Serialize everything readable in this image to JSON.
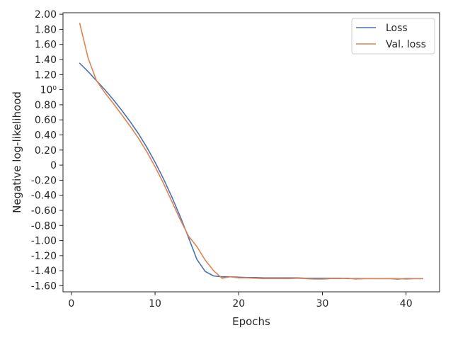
{
  "chart_data": {
    "type": "line",
    "xlabel": "Epochs",
    "ylabel": "Negative log-likelihood",
    "xlim": [
      -1,
      44
    ],
    "ylim": [
      -1.68,
      2.02
    ],
    "xticks": [
      0,
      10,
      20,
      30,
      40
    ],
    "yticks": [
      {
        "value": 2.0,
        "label": "2.00"
      },
      {
        "value": 1.8,
        "label": "1.80"
      },
      {
        "value": 1.6,
        "label": "1.60"
      },
      {
        "value": 1.4,
        "label": "1.40"
      },
      {
        "value": 1.2,
        "label": "1.20"
      },
      {
        "value": 1.0,
        "label": "10⁰"
      },
      {
        "value": 0.8,
        "label": "0.80"
      },
      {
        "value": 0.6,
        "label": "0.60"
      },
      {
        "value": 0.4,
        "label": "0.40"
      },
      {
        "value": 0.2,
        "label": "0.20"
      },
      {
        "value": 0.0,
        "label": "0"
      },
      {
        "value": -0.2,
        "label": "-0.20"
      },
      {
        "value": -0.4,
        "label": "-0.40"
      },
      {
        "value": -0.6,
        "label": "-0.60"
      },
      {
        "value": -0.8,
        "label": "-0.80"
      },
      {
        "value": -1.0,
        "label": "-1.00"
      },
      {
        "value": -1.2,
        "label": "-1.20"
      },
      {
        "value": -1.4,
        "label": "-1.40"
      },
      {
        "value": -1.6,
        "label": "-1.60"
      }
    ],
    "grid": false,
    "legend_position": "top-right",
    "x": [
      1,
      2,
      3,
      4,
      5,
      6,
      7,
      8,
      9,
      10,
      11,
      12,
      13,
      14,
      15,
      16,
      17,
      18,
      19,
      20,
      21,
      22,
      23,
      24,
      25,
      26,
      27,
      28,
      29,
      30,
      31,
      32,
      33,
      34,
      35,
      36,
      37,
      38,
      39,
      40,
      41,
      42
    ],
    "series": [
      {
        "name": "Loss",
        "color": "#4c72b0",
        "values": [
          1.35,
          1.24,
          1.12,
          1.0,
          0.87,
          0.73,
          0.58,
          0.42,
          0.24,
          0.04,
          -0.18,
          -0.42,
          -0.68,
          -0.96,
          -1.25,
          -1.41,
          -1.47,
          -1.48,
          -1.48,
          -1.485,
          -1.49,
          -1.49,
          -1.495,
          -1.495,
          -1.495,
          -1.495,
          -1.495,
          -1.5,
          -1.5,
          -1.5,
          -1.5,
          -1.5,
          -1.505,
          -1.505,
          -1.505,
          -1.505,
          -1.505,
          -1.505,
          -1.51,
          -1.505,
          -1.505,
          -1.505
        ]
      },
      {
        "name": "Val. loss",
        "color": "#dd8452",
        "values": [
          1.88,
          1.42,
          1.12,
          0.96,
          0.82,
          0.67,
          0.52,
          0.36,
          0.18,
          -0.02,
          -0.24,
          -0.48,
          -0.72,
          -0.94,
          -1.08,
          -1.26,
          -1.4,
          -1.5,
          -1.48,
          -1.495,
          -1.495,
          -1.5,
          -1.505,
          -1.505,
          -1.505,
          -1.505,
          -1.5,
          -1.505,
          -1.51,
          -1.51,
          -1.505,
          -1.505,
          -1.5,
          -1.51,
          -1.505,
          -1.505,
          -1.505,
          -1.505,
          -1.505,
          -1.51,
          -1.505,
          -1.505
        ]
      }
    ]
  }
}
